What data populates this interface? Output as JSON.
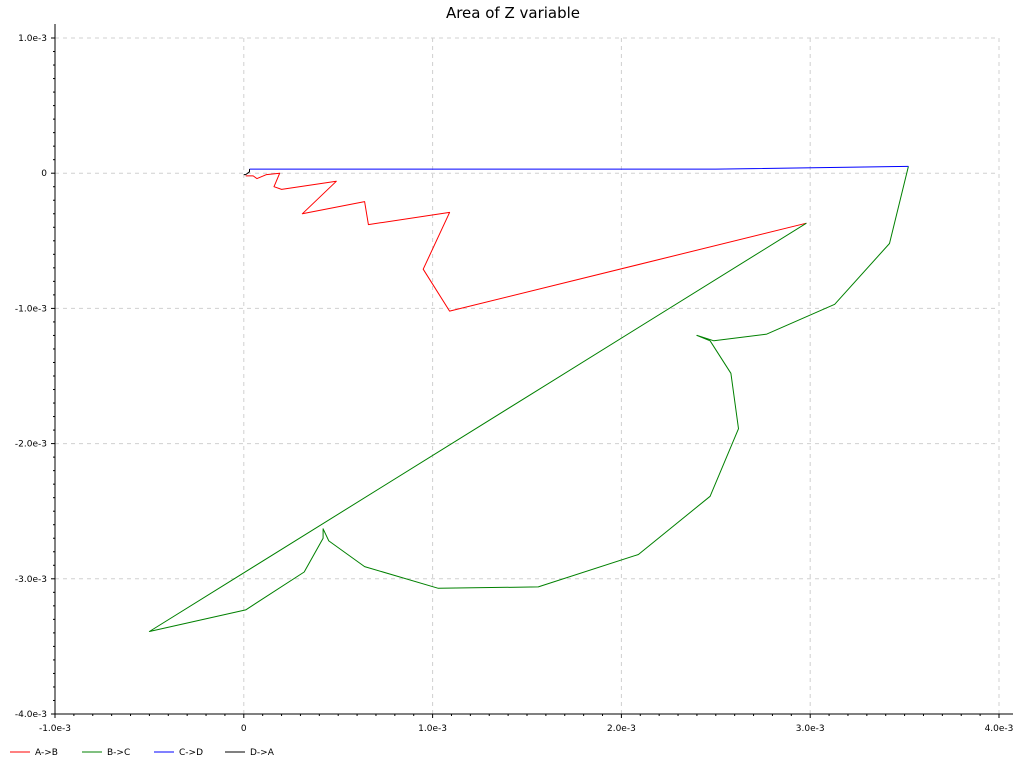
{
  "chart_data": {
    "type": "line",
    "title": "Area of Z variable",
    "xlabel": "",
    "ylabel": "",
    "xlim": [
      -0.001,
      0.004
    ],
    "ylim": [
      -0.004,
      0.001
    ],
    "x_ticks": [
      {
        "value": -0.001,
        "label": "-1.0e-3"
      },
      {
        "value": 0,
        "label": "0"
      },
      {
        "value": 0.001,
        "label": "1.0e-3"
      },
      {
        "value": 0.002,
        "label": "2.0e-3"
      },
      {
        "value": 0.003,
        "label": "3.0e-3"
      },
      {
        "value": 0.004,
        "label": "4.0e-3"
      }
    ],
    "y_ticks": [
      {
        "value": 0.001,
        "label": "1.0e-3"
      },
      {
        "value": 0,
        "label": "0"
      },
      {
        "value": -0.001,
        "label": "-1.0e-3"
      },
      {
        "value": -0.002,
        "label": "-2.0e-3"
      },
      {
        "value": -0.003,
        "label": "-3.0e-3"
      },
      {
        "value": -0.004,
        "label": "-4.0e-3"
      }
    ],
    "grid": true,
    "legend_placement": "bottom",
    "series": [
      {
        "name": "A->B",
        "color": "#ff0000",
        "points": [
          [
            1e-05,
            -2e-05
          ],
          [
            5e-05,
            -2e-05
          ],
          [
            7e-05,
            -4e-05
          ],
          [
            0.00012,
            -1e-05
          ],
          [
            0.00019,
            0.0
          ],
          [
            0.00016,
            -0.0001
          ],
          [
            0.0002,
            -0.00012
          ],
          [
            0.00049,
            -6e-05
          ],
          [
            0.00031,
            -0.0003
          ],
          [
            0.00064,
            -0.00021
          ],
          [
            0.00066,
            -0.00038
          ],
          [
            0.00109,
            -0.00029
          ],
          [
            0.00095,
            -0.00071
          ],
          [
            0.00109,
            -0.00102
          ],
          [
            0.00298,
            -0.00037
          ]
        ]
      },
      {
        "name": "B->C",
        "color": "#008000",
        "points": [
          [
            0.00298,
            -0.00037
          ],
          [
            -0.0005,
            -0.00339
          ],
          [
            1e-05,
            -0.00323
          ],
          [
            0.00032,
            -0.00295
          ],
          [
            0.00042,
            -0.0027
          ],
          [
            0.00042,
            -0.00263
          ],
          [
            0.00045,
            -0.00272
          ],
          [
            0.00064,
            -0.00291
          ],
          [
            0.00103,
            -0.00307
          ],
          [
            0.00156,
            -0.00306
          ],
          [
            0.00209,
            -0.00282
          ],
          [
            0.00247,
            -0.00239
          ],
          [
            0.00262,
            -0.00189
          ],
          [
            0.00258,
            -0.00148
          ],
          [
            0.00247,
            -0.00124
          ],
          [
            0.0024,
            -0.0012
          ],
          [
            0.00249,
            -0.00124
          ],
          [
            0.00277,
            -0.00119
          ],
          [
            0.00313,
            -0.00097
          ],
          [
            0.00342,
            -0.00052
          ],
          [
            0.00352,
            5e-05
          ]
        ]
      },
      {
        "name": "C->D",
        "color": "#0000ff",
        "points": [
          [
            0.00352,
            5e-05
          ],
          [
            0.0025,
            3e-05
          ],
          [
            0.001,
            3e-05
          ],
          [
            3e-05,
            3e-05
          ]
        ]
      },
      {
        "name": "D->A",
        "color": "#000000",
        "points": [
          [
            3e-05,
            3e-05
          ],
          [
            3e-05,
            1e-05
          ],
          [
            1e-05,
            -1e-05
          ],
          [
            0.0,
            -1e-05
          ]
        ]
      }
    ]
  }
}
